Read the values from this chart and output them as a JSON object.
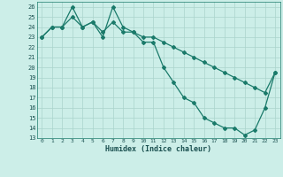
{
  "xlabel": "Humidex (Indice chaleur)",
  "bg_color": "#cceee8",
  "grid_major_color": "#aad4cc",
  "grid_minor_color": "#bbddd8",
  "line_color": "#1a7a6a",
  "xlim": [
    -0.5,
    23.5
  ],
  "ylim": [
    13,
    26.5
  ],
  "yticks": [
    13,
    14,
    15,
    16,
    17,
    18,
    19,
    20,
    21,
    22,
    23,
    24,
    25,
    26
  ],
  "xticks": [
    0,
    1,
    2,
    3,
    4,
    5,
    6,
    7,
    8,
    9,
    10,
    11,
    12,
    13,
    14,
    15,
    16,
    17,
    18,
    19,
    20,
    21,
    22,
    23
  ],
  "line1_x": [
    0,
    1,
    2,
    3,
    4,
    5,
    6,
    7,
    8,
    9,
    10,
    11,
    12,
    13,
    14,
    15,
    16,
    17,
    18,
    19,
    20,
    21,
    22,
    23
  ],
  "line1_y": [
    23,
    24,
    24,
    26,
    24,
    24.5,
    23,
    26,
    24,
    23.5,
    22.5,
    22.5,
    20,
    18.5,
    17,
    16.5,
    15,
    14.5,
    14,
    14,
    13.3,
    13.8,
    16,
    19.5
  ],
  "line2_x": [
    0,
    1,
    2,
    3,
    4,
    5,
    6,
    7,
    8,
    9,
    10,
    11,
    12,
    13,
    14,
    15,
    16,
    17,
    18,
    19,
    20,
    21,
    22,
    23
  ],
  "line2_y": [
    23,
    24,
    24,
    25,
    24,
    24.5,
    23.5,
    24.5,
    23.5,
    23.5,
    23,
    23,
    22.5,
    22,
    21.5,
    21,
    20.5,
    20,
    19.5,
    19,
    18.5,
    18,
    17.5,
    19.5
  ]
}
